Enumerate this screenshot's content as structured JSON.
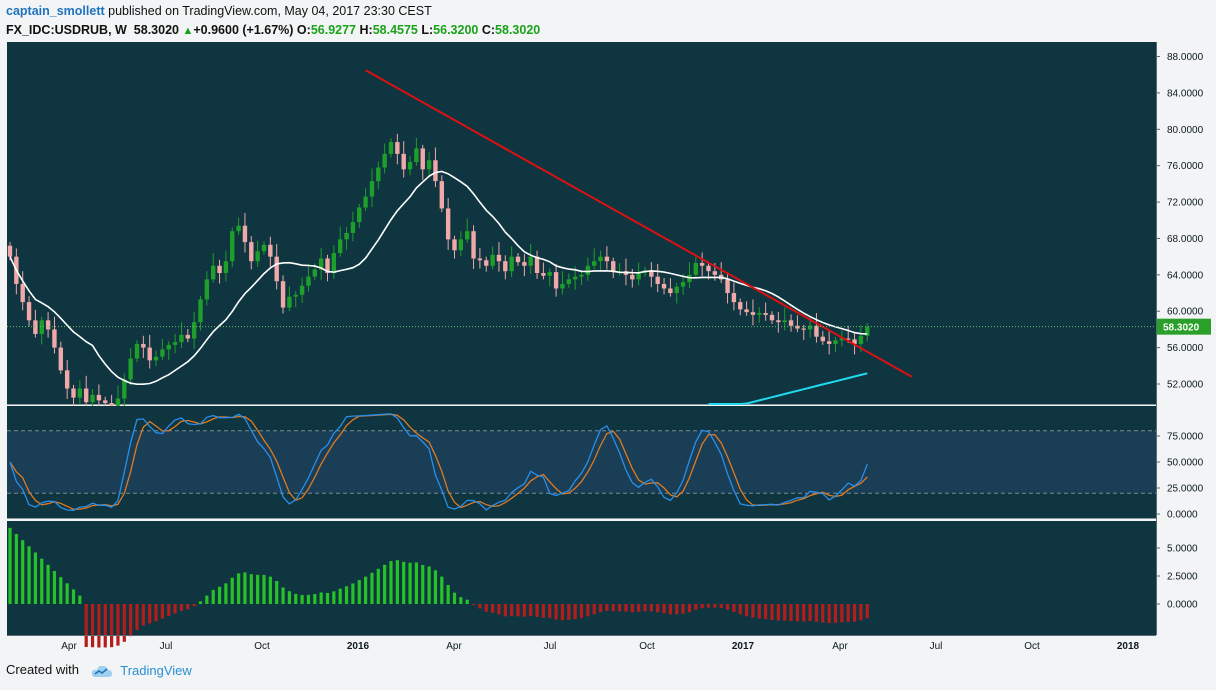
{
  "header": {
    "author": "captain_smollett",
    "published": "published on TradingView.com, May 04, 2017 23:30 CEST",
    "symbol": "FX_IDC:USDRUB, W",
    "last": "58.3020",
    "change": "+0.9600 (+1.67%)",
    "o_label": "O:",
    "o_value": "56.9277",
    "h_label": "H:",
    "h_value": "58.4575",
    "l_label": "L:",
    "l_value": "56.3200",
    "c_label": "C:",
    "c_value": "58.3020"
  },
  "footer": {
    "created_with": "Created with",
    "brand": "TradingView"
  },
  "colors": {
    "pane_bg": "#0e3540",
    "up_candle": "#1e9e2a",
    "down_candle": "#f0a8a8",
    "trendline": "#dd1111",
    "ma_white": "#ffffff",
    "ma_cyan": "#22d8f0",
    "stoch_k": "#2a8ee8",
    "stoch_d": "#e07a20",
    "hist_pos": "#27c227",
    "hist_neg": "#b51d1d",
    "price_tag": "#2aa02a"
  },
  "chart_data": [
    {
      "type": "candlestick",
      "price_axis_ticks": [
        "88.0000",
        "84.0000",
        "80.0000",
        "76.0000",
        "72.0000",
        "68.0000",
        "64.0000",
        "60.0000",
        "56.0000",
        "52.0000"
      ],
      "ylim": [
        49.8,
        89.6
      ],
      "current_price": "58.3020",
      "x_tick_labels": [
        "Apr",
        "Jul",
        "Oct",
        "2016",
        "Apr",
        "Jul",
        "Oct",
        "2017",
        "Apr",
        "Jul",
        "Oct",
        "2018"
      ],
      "closes": [
        66.0,
        63.0,
        61.0,
        59.0,
        57.5,
        59.0,
        58.0,
        56.0,
        53.5,
        51.5,
        50.5,
        51.5,
        50.0,
        50.8,
        50.2,
        49.9,
        49.6,
        50.4,
        52.5,
        54.8,
        56.4,
        56.0,
        54.6,
        55.0,
        55.8,
        56.3,
        56.6,
        57.4,
        57.0,
        58.8,
        61.3,
        63.5,
        65.0,
        64.2,
        65.5,
        68.8,
        69.4,
        67.6,
        65.5,
        66.6,
        67.3,
        66.0,
        63.3,
        60.4,
        61.6,
        61.8,
        62.8,
        63.8,
        64.6,
        65.8,
        64.2,
        66.4,
        67.9,
        68.6,
        69.8,
        71.4,
        72.6,
        74.3,
        75.8,
        77.3,
        78.6,
        77.3,
        75.6,
        76.4,
        77.9,
        75.6,
        76.6,
        74.3,
        71.3,
        67.9,
        66.7,
        67.9,
        68.8,
        65.8,
        65.6,
        65.0,
        66.2,
        65.5,
        64.4,
        66.0,
        65.4,
        65.0,
        66.0,
        64.2,
        63.9,
        64.3,
        62.5,
        63.0,
        63.5,
        63.8,
        64.0,
        65.0,
        65.5,
        66.0,
        65.5,
        64.3,
        64.4,
        64.0,
        63.5,
        64.2,
        64.5,
        63.8,
        63.0,
        62.5,
        62.0,
        62.7,
        63.2,
        64.0,
        65.3,
        65.0,
        64.4,
        64.0,
        63.5,
        62.0,
        61.0,
        60.2,
        59.9,
        59.6,
        59.8,
        59.6,
        59.0,
        58.8,
        59.0,
        58.4,
        58.1,
        58.0,
        58.4,
        57.2,
        56.7,
        56.4,
        56.8,
        57.0,
        56.9,
        56.4,
        57.3,
        58.3
      ],
      "stoch_axis_ticks": [
        "75.0000",
        "50.0000",
        "25.0000",
        "0.0000"
      ],
      "stoch_levels": [
        80,
        20
      ],
      "hist_axis_ticks": [
        "5.0000",
        "2.5000",
        "0.0000"
      ]
    }
  ]
}
